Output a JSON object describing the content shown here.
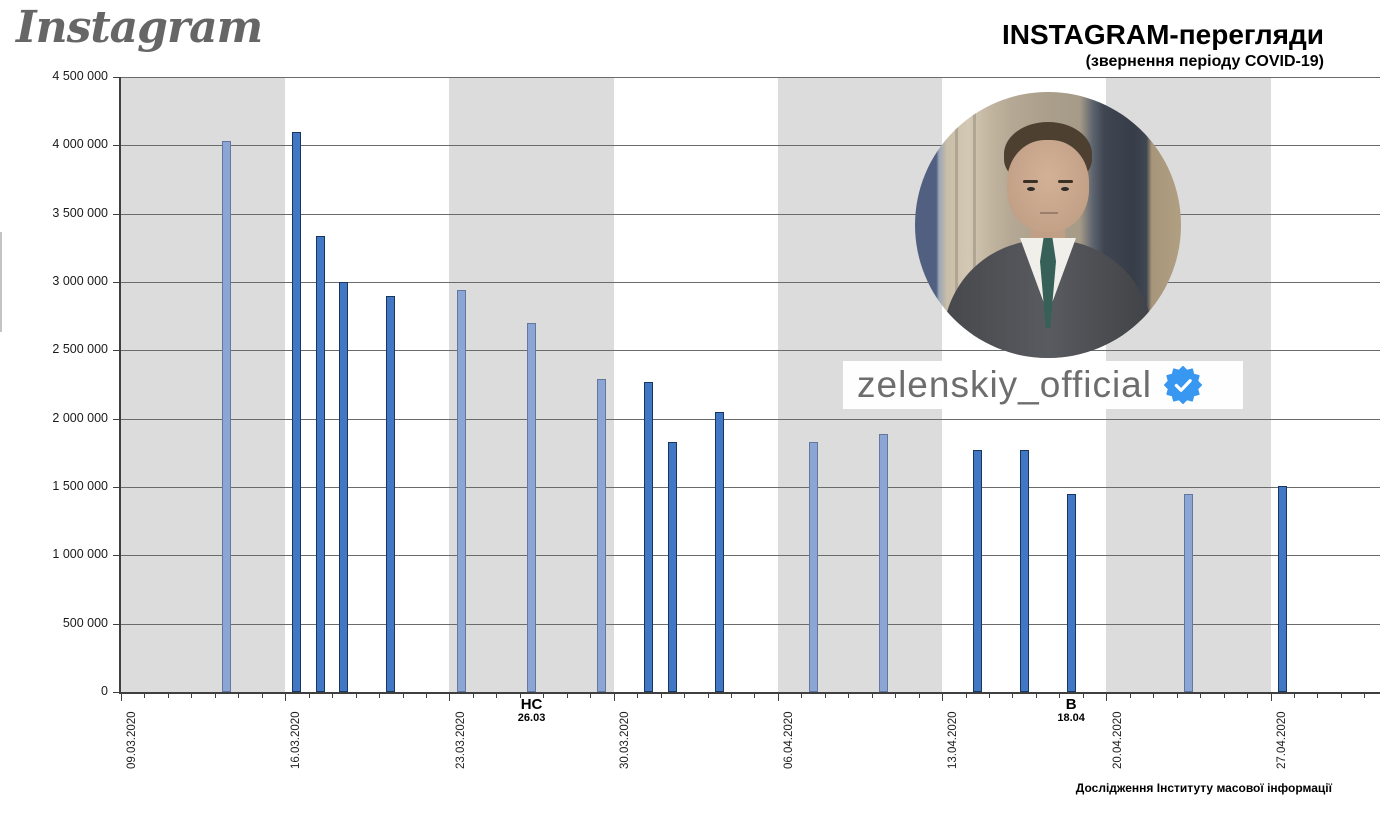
{
  "header": {
    "logo_text": "Instagram",
    "title": "INSTAGRAM-перегляди",
    "subtitle": "(звернення періоду COVID-19)"
  },
  "profile": {
    "username": "zelenskiy_official",
    "verified_badge": "verified-badge-icon"
  },
  "footer": {
    "credit": "Дослідження Інституту масової інформації"
  },
  "colors": {
    "bar": "#4277c4",
    "bar_muted": "#8ba6d4",
    "week_band": "#dcdcdc",
    "badge_blue": "#3897f0"
  },
  "chart_data": {
    "type": "bar",
    "title": "INSTAGRAM-перегляди (звернення періоду COVID-19)",
    "xlabel": "",
    "ylabel": "",
    "ylim": [
      0,
      4500000
    ],
    "grid": true,
    "start_date": "09.03.2020",
    "y_tick_labels": [
      "4 500 000",
      "4 000 000",
      "3 500 000",
      "3 000 000",
      "2 500 000",
      "2 000 000",
      "1 500 000",
      "1 000 000",
      "500 000",
      "0"
    ],
    "x_tick_labels": [
      "09.03.2020",
      "16.03.2020",
      "23.03.2020",
      "30.03.2020",
      "06.04.2020",
      "13.04.2020",
      "20.04.2020",
      "27.04.2020"
    ],
    "shaded_weeks": [
      {
        "from": "09.03",
        "to": "16.03"
      },
      {
        "from": "23.03",
        "to": "30.03"
      },
      {
        "from": "06.04",
        "to": "13.04"
      },
      {
        "from": "20.04",
        "to": "27.04"
      }
    ],
    "points": [
      {
        "date": "13.03",
        "value": 4030000
      },
      {
        "date": "16.03",
        "value": 4100000
      },
      {
        "date": "17.03",
        "value": 3340000
      },
      {
        "date": "18.03",
        "value": 3000000
      },
      {
        "date": "20.03",
        "value": 2900000
      },
      {
        "date": "23.03",
        "value": 2940000
      },
      {
        "date": "26.03",
        "value": 2700000
      },
      {
        "date": "29.03",
        "value": 2290000
      },
      {
        "date": "31.03",
        "value": 2270000
      },
      {
        "date": "01.04",
        "value": 1830000
      },
      {
        "date": "03.04",
        "value": 2050000
      },
      {
        "date": "07.04",
        "value": 1830000
      },
      {
        "date": "10.04",
        "value": 1890000
      },
      {
        "date": "14.04",
        "value": 1770000
      },
      {
        "date": "16.04",
        "value": 1770000
      },
      {
        "date": "18.04",
        "value": 1450000
      },
      {
        "date": "23.04",
        "value": 1450000
      },
      {
        "date": "27.04",
        "value": 1510000
      }
    ],
    "annotations": [
      {
        "label": "НС",
        "date": "26.03"
      },
      {
        "label": "В",
        "date": "18.04"
      }
    ]
  }
}
